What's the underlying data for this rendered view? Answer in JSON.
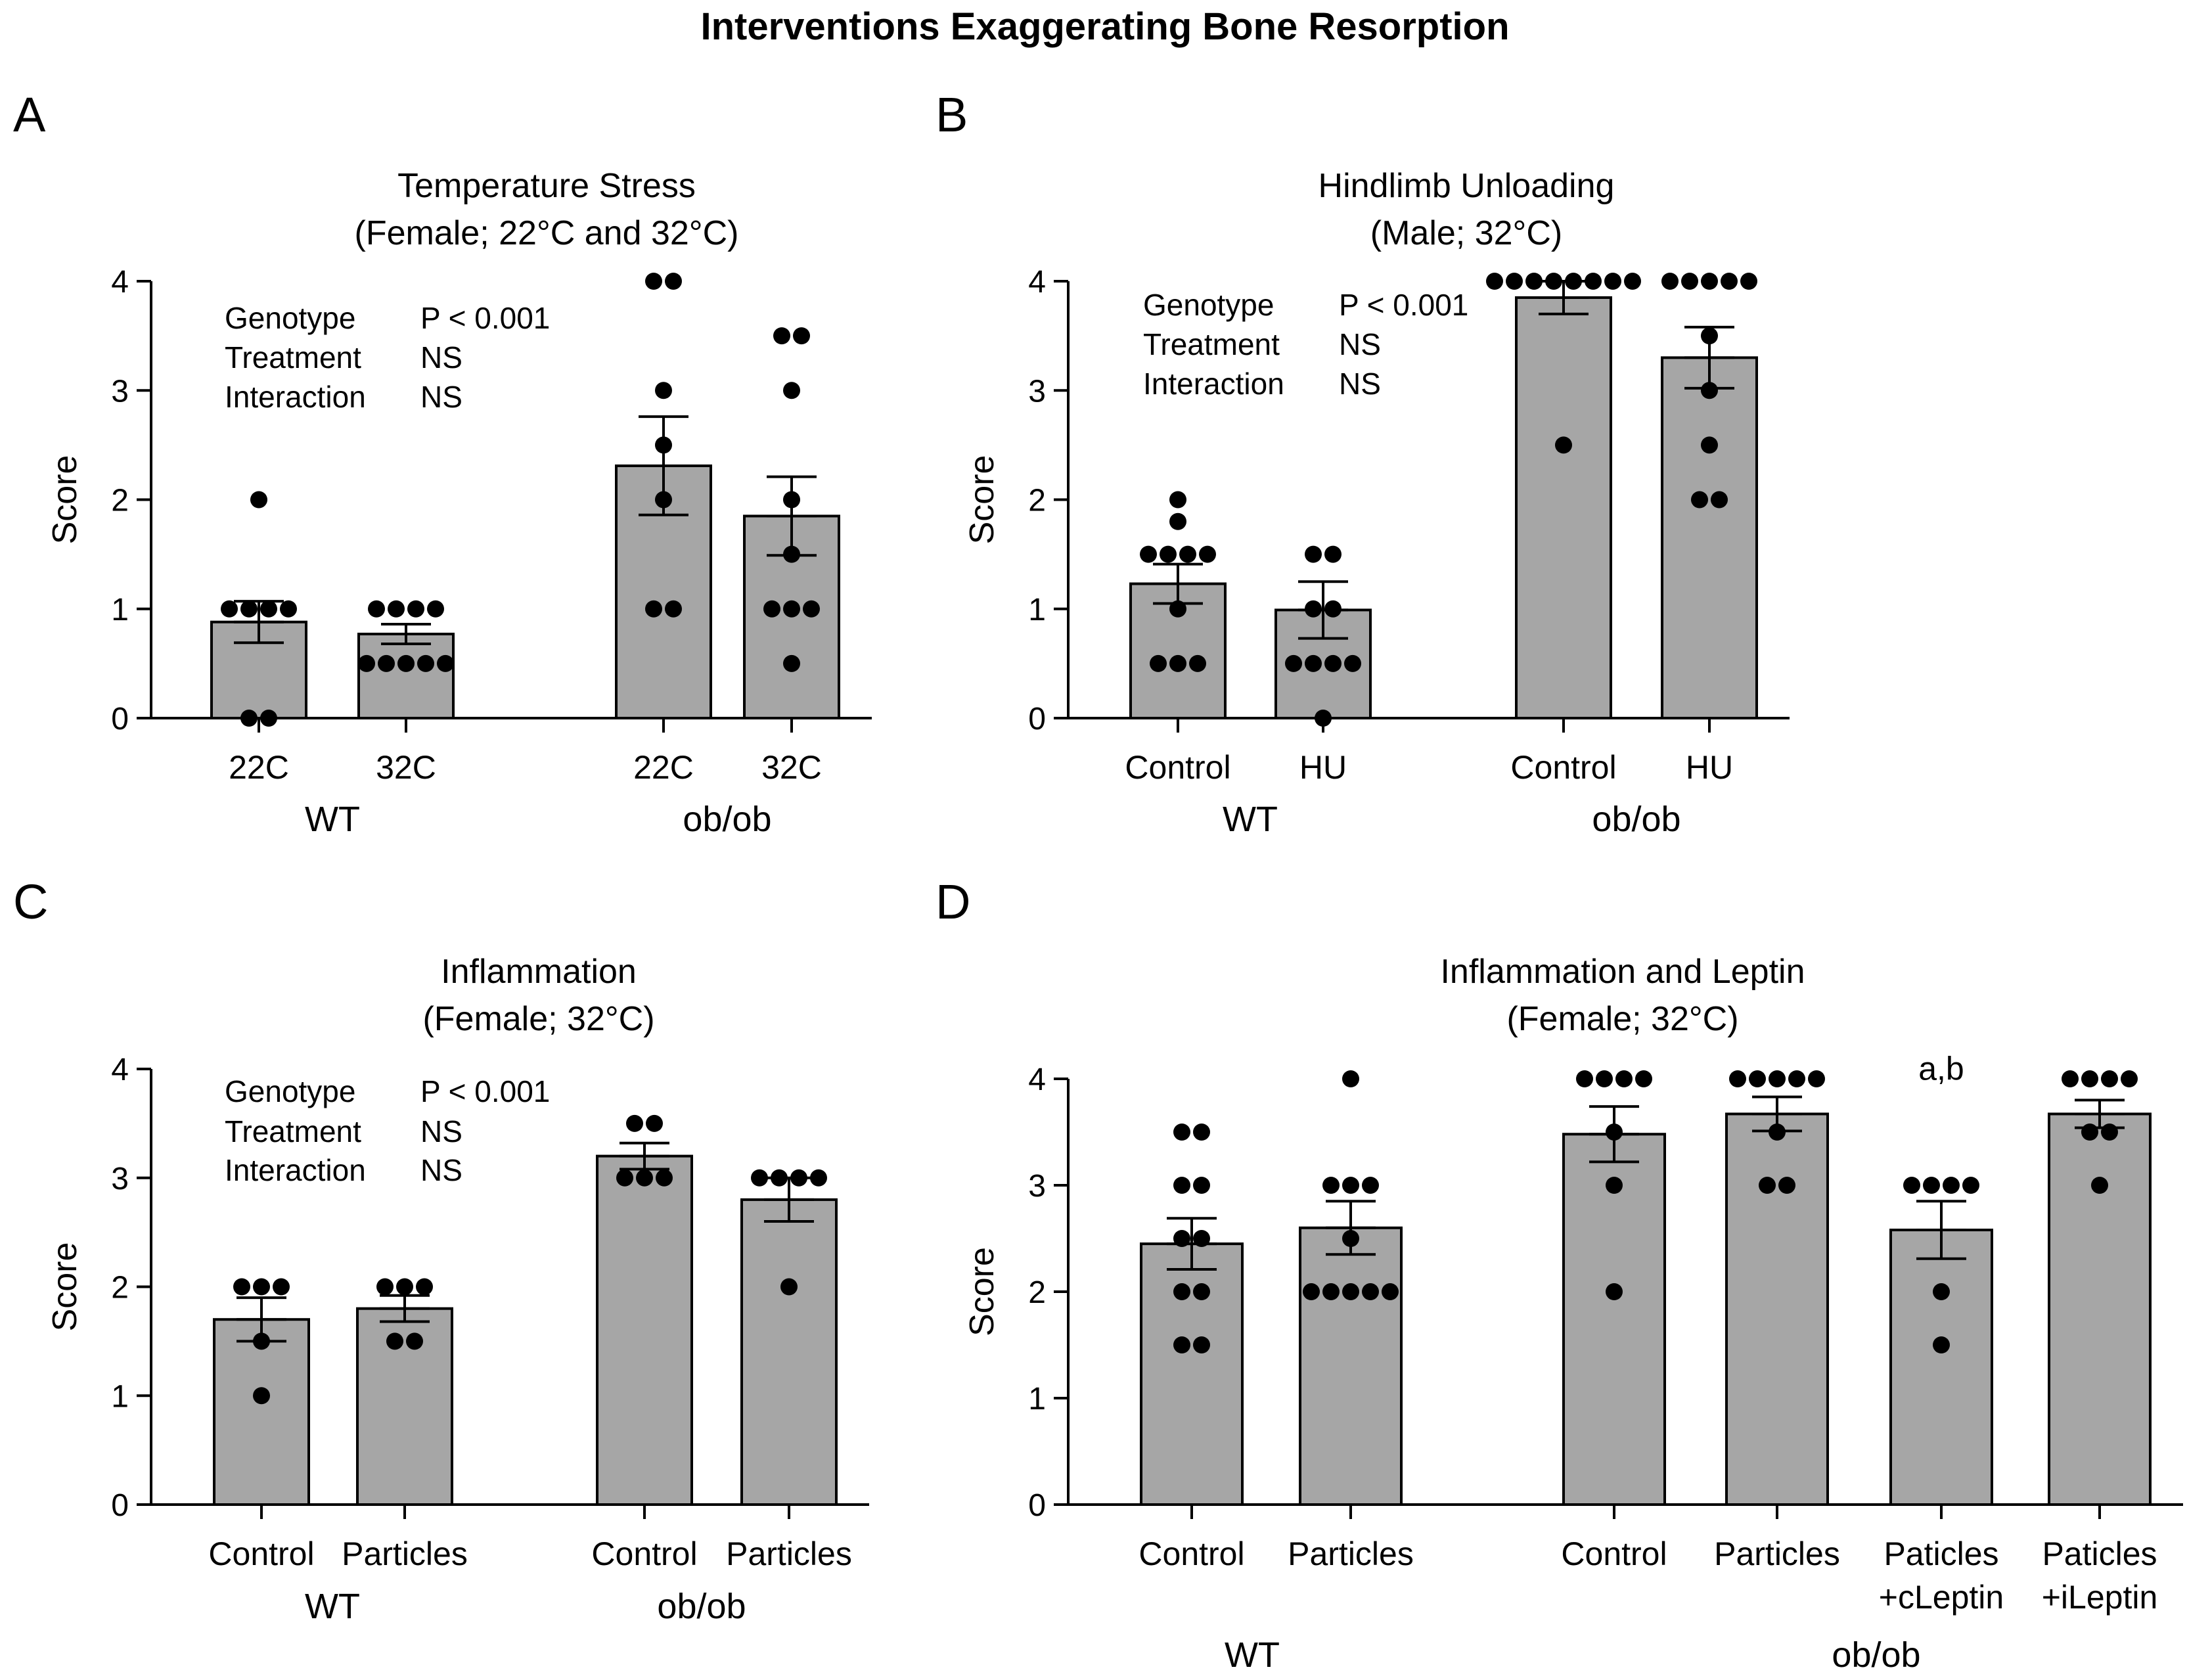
{
  "page_title": "Interventions Exaggerating Bone Resorption",
  "chart_data": [
    {
      "panel": "A",
      "type": "bar",
      "title": "Temperature Stress",
      "subtitle": "(Female; 22°C and 32°C)",
      "ylabel": "Score",
      "ylim": [
        0,
        4
      ],
      "yticks": [
        "0",
        "1",
        "2",
        "3",
        "4"
      ],
      "categories": [
        "22C",
        "32C",
        "22C",
        "32C"
      ],
      "groups": [
        {
          "label": "WT",
          "bar_indices": [
            0,
            1
          ]
        },
        {
          "label": "ob/ob",
          "bar_indices": [
            2,
            3
          ]
        }
      ],
      "values": [
        0.88,
        0.77,
        2.31,
        1.85
      ],
      "sem": [
        0.19,
        0.09,
        0.45,
        0.36
      ],
      "points": [
        [
          2,
          1,
          1,
          1,
          1,
          0,
          0
        ],
        [
          1,
          1,
          1,
          1,
          0.5,
          0.5,
          0.5,
          0.5,
          0.5
        ],
        [
          4,
          4,
          3,
          2.5,
          2,
          1,
          1
        ],
        [
          3.5,
          3.5,
          3,
          2,
          1.5,
          1,
          1,
          1,
          0.5
        ]
      ],
      "stats": [
        {
          "label": "Genotype",
          "value": "P < 0.001"
        },
        {
          "label": "Treatment",
          "value": "NS"
        },
        {
          "label": "Interaction",
          "value": "NS"
        }
      ],
      "annotations": []
    },
    {
      "panel": "B",
      "type": "bar",
      "title": "Hindlimb Unloading",
      "subtitle": "(Male;  32°C)",
      "ylabel": "Score",
      "ylim": [
        0,
        4
      ],
      "yticks": [
        "0",
        "1",
        "2",
        "3",
        "4"
      ],
      "categories": [
        "Control",
        "HU",
        "Control",
        "HU"
      ],
      "groups": [
        {
          "label": "WT",
          "bar_indices": [
            0,
            1
          ]
        },
        {
          "label": "ob/ob",
          "bar_indices": [
            2,
            3
          ]
        }
      ],
      "values": [
        1.23,
        0.99,
        3.85,
        3.3
      ],
      "sem": [
        0.18,
        0.26,
        0.15,
        0.28
      ],
      "points": [
        [
          2,
          1.8,
          1.5,
          1.5,
          1.5,
          1.5,
          1,
          0.5,
          0.5,
          0.5
        ],
        [
          1.5,
          1.5,
          1,
          1,
          0.5,
          0.5,
          0.5,
          0.5,
          0
        ],
        [
          4,
          4,
          4,
          4,
          4,
          4,
          4,
          4,
          2.5
        ],
        [
          4,
          4,
          4,
          4,
          4,
          3.5,
          3,
          2.5,
          2,
          2
        ]
      ],
      "stats": [
        {
          "label": "Genotype",
          "value": "P < 0.001"
        },
        {
          "label": "Treatment",
          "value": "NS"
        },
        {
          "label": "Interaction",
          "value": "NS"
        }
      ],
      "annotations": []
    },
    {
      "panel": "C",
      "type": "bar",
      "title": "Inflammation",
      "subtitle": "(Female; 32°C)",
      "ylabel": "Score",
      "ylim": [
        0,
        4
      ],
      "yticks": [
        "0",
        "1",
        "2",
        "3",
        "4"
      ],
      "categories": [
        "Control",
        "Particles",
        "Control",
        "Particles"
      ],
      "groups": [
        {
          "label": "WT",
          "bar_indices": [
            0,
            1
          ]
        },
        {
          "label": "ob/ob",
          "bar_indices": [
            2,
            3
          ]
        }
      ],
      "values": [
        1.7,
        1.8,
        3.2,
        2.8
      ],
      "sem": [
        0.2,
        0.12,
        0.12,
        0.2
      ],
      "points": [
        [
          2,
          2,
          2,
          1.5,
          1
        ],
        [
          2,
          2,
          2,
          1.5,
          1.5
        ],
        [
          3.5,
          3.5,
          3,
          3,
          3
        ],
        [
          3,
          3,
          3,
          3,
          2
        ]
      ],
      "stats": [
        {
          "label": "Genotype",
          "value": "P < 0.001"
        },
        {
          "label": "Treatment",
          "value": "NS"
        },
        {
          "label": "Interaction",
          "value": "NS"
        }
      ],
      "annotations": []
    },
    {
      "panel": "D",
      "type": "bar",
      "title": "Inflammation and Leptin",
      "subtitle": "(Female; 32°C)",
      "ylabel": "Score",
      "ylim": [
        0,
        4
      ],
      "yticks": [
        "0",
        "1",
        "2",
        "3",
        "4"
      ],
      "categories": [
        "Control",
        "Particles",
        "Control",
        "Particles",
        "Paticles\n+cLeptin",
        "Paticles\n+iLeptin"
      ],
      "groups": [
        {
          "label": "WT",
          "bar_indices": [
            0,
            1
          ]
        },
        {
          "label": "ob/ob",
          "bar_indices": [
            2,
            3,
            4,
            5
          ]
        }
      ],
      "values": [
        2.45,
        2.6,
        3.48,
        3.67,
        2.58,
        3.67
      ],
      "sem": [
        0.24,
        0.25,
        0.26,
        0.16,
        0.27,
        0.13
      ],
      "points": [
        [
          3.5,
          3.5,
          3,
          3,
          2.5,
          2.5,
          2,
          2,
          1.5,
          1.5
        ],
        [
          4,
          3,
          3,
          3,
          2.5,
          2,
          2,
          2,
          2,
          2
        ],
        [
          4,
          4,
          4,
          4,
          3.5,
          3,
          2
        ],
        [
          4,
          4,
          4,
          4,
          4,
          3.5,
          3,
          3
        ],
        [
          3,
          3,
          3,
          3,
          2,
          1.5
        ],
        [
          4,
          4,
          4,
          4,
          3.5,
          3.5,
          3
        ]
      ],
      "stats": [],
      "annotations": [
        {
          "bar_index": 4,
          "text": "a,b"
        }
      ]
    }
  ],
  "colors": {
    "bar_fill": "#a6a6a6",
    "bar_stroke": "#000000",
    "point": "#000000",
    "axis": "#000000"
  }
}
